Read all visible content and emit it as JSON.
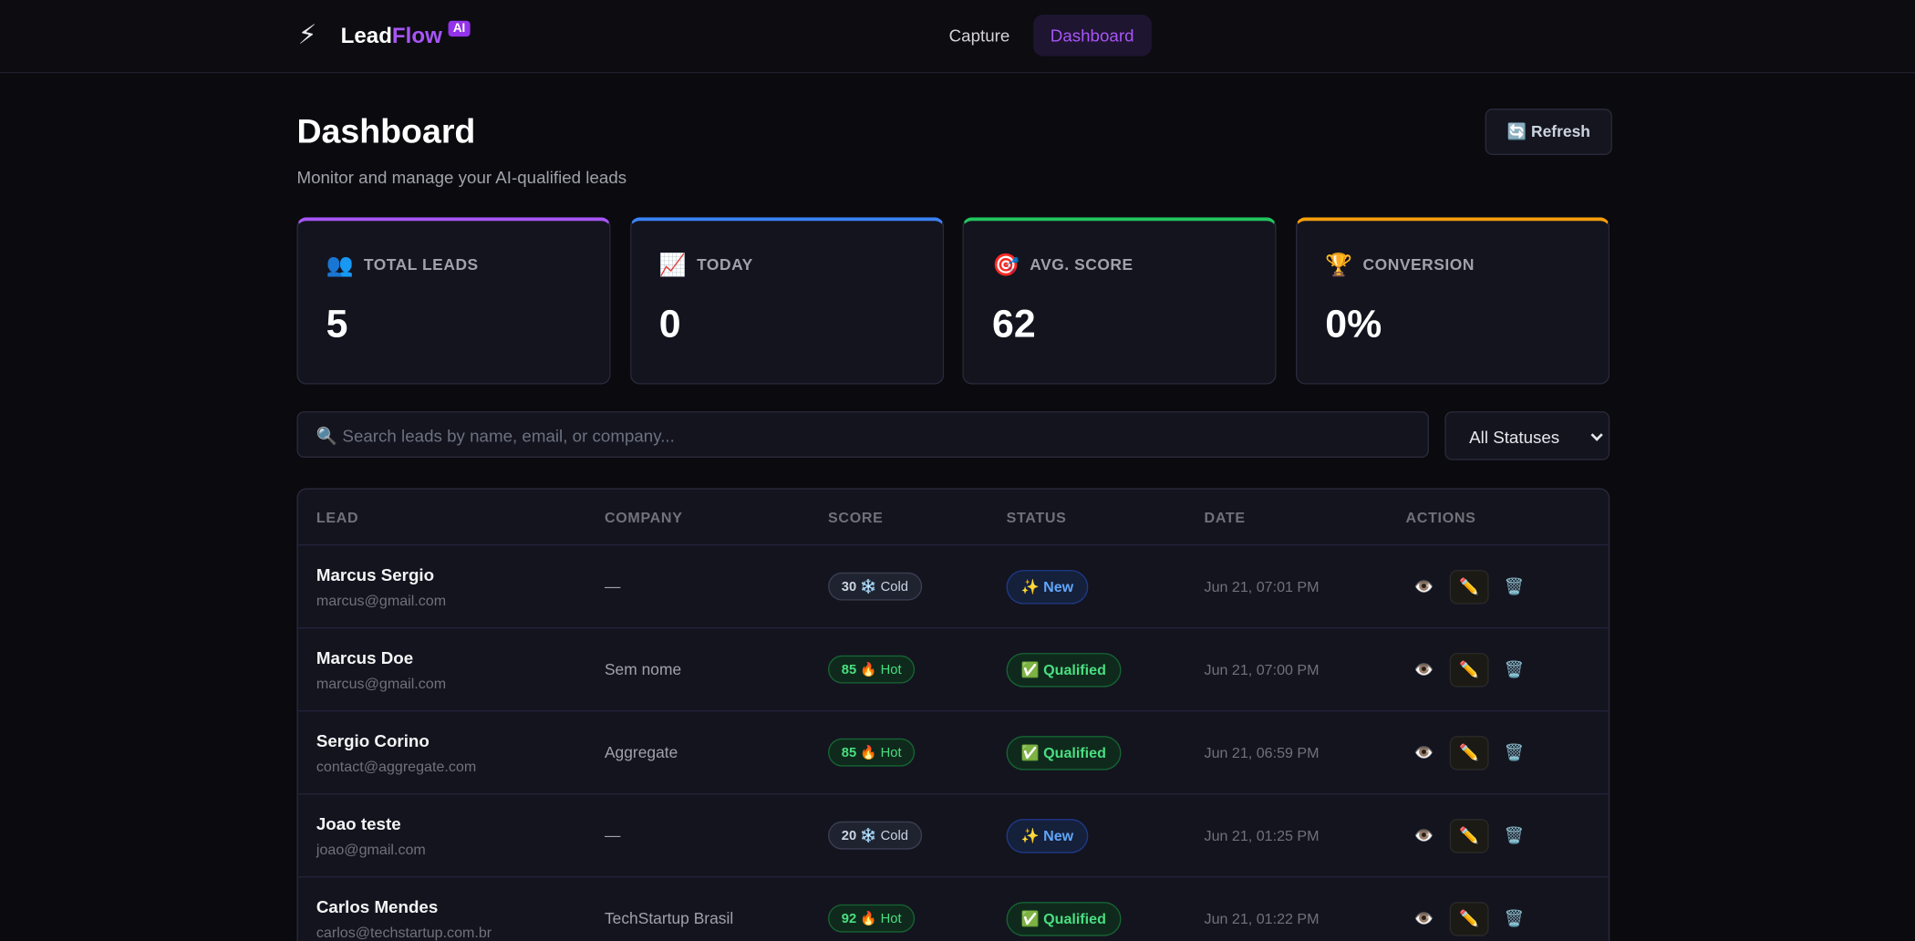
{
  "header": {
    "logo_icon": "⚡",
    "brand": "Lead",
    "brand_accent": "Flow",
    "badge": "AI",
    "nav": [
      "Capture",
      "Dashboard"
    ]
  },
  "page": {
    "title": "Dashboard",
    "subtitle": "Monitor and manage your AI-qualified leads",
    "refresh": "🔄 Refresh"
  },
  "stats": [
    {
      "icon": "👥",
      "label": "TOTAL LEADS",
      "value": 5
    },
    {
      "icon": "📈",
      "label": "TODAY",
      "value": 0
    },
    {
      "icon": "🎯",
      "label": "AVG. SCORE",
      "value": 62
    },
    {
      "icon": "🏆",
      "label": "CONVERSION",
      "value": "0%"
    }
  ],
  "filters": {
    "search_placeholder": "🔍 Search leads by name, email, or company...",
    "status_select": "All Statuses"
  },
  "table": {
    "headers": [
      "LEAD",
      "COMPANY",
      "SCORE",
      "STATUS",
      "DATE",
      "ACTIONS"
    ],
    "actions": [
      "👁️",
      "✏️",
      "🗑️"
    ],
    "rows": [
      {
        "name": "Marcus Sergio",
        "email": "marcus@gmail.com",
        "company": "—",
        "score": 30,
        "tier": "❄️ Cold",
        "status": "✨ New",
        "date": "Jun 21, 07:01 PM"
      },
      {
        "name": "Marcus Doe",
        "email": "marcus@gmail.com",
        "company": "Sem nome",
        "score": 85,
        "tier": "🔥 Hot",
        "status": "✅ Qualified",
        "date": "Jun 21, 07:00 PM"
      },
      {
        "name": "Sergio Corino",
        "email": "contact@aggregate.com",
        "company": "Aggregate",
        "score": 85,
        "tier": "🔥 Hot",
        "status": "✅ Qualified",
        "date": "Jun 21, 06:59 PM"
      },
      {
        "name": "Joao teste",
        "email": "joao@gmail.com",
        "company": "—",
        "score": 20,
        "tier": "❄️ Cold",
        "status": "✨ New",
        "date": "Jun 21, 01:25 PM"
      },
      {
        "name": "Carlos Mendes",
        "email": "carlos@techstartup.com.br",
        "company": "TechStartup Brasil",
        "score": 92,
        "tier": "🔥 Hot",
        "status": "✅ Qualified",
        "date": "Jun 21, 01:22 PM"
      }
    ]
  }
}
